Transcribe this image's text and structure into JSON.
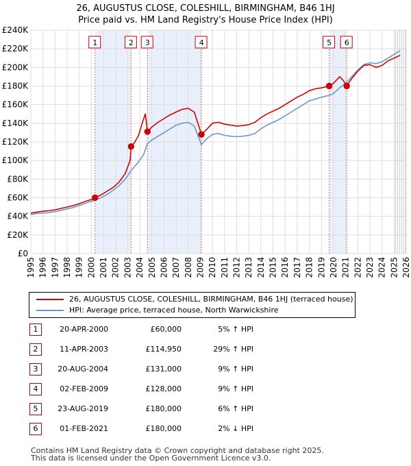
{
  "chart_data": {
    "type": "line",
    "title": "26, AUGUSTUS CLOSE, COLESHILL, BIRMINGHAM, B46 1HJ",
    "subtitle": "Price paid vs. HM Land Registry's House Price Index (HPI)",
    "xlim": [
      1995,
      2026
    ],
    "ylim": [
      0,
      240000
    ],
    "x_ticks": [
      1995,
      1996,
      1997,
      1998,
      1999,
      2000,
      2001,
      2002,
      2003,
      2004,
      2005,
      2006,
      2007,
      2008,
      2009,
      2010,
      2011,
      2012,
      2013,
      2014,
      2015,
      2016,
      2017,
      2018,
      2019,
      2020,
      2021,
      2022,
      2023,
      2024,
      2025,
      2026
    ],
    "y_ticks": [
      {
        "value": 0,
        "label": "£0"
      },
      {
        "value": 20000,
        "label": "£20K"
      },
      {
        "value": 40000,
        "label": "£40K"
      },
      {
        "value": 60000,
        "label": "£60K"
      },
      {
        "value": 80000,
        "label": "£80K"
      },
      {
        "value": 100000,
        "label": "£100K"
      },
      {
        "value": 120000,
        "label": "£120K"
      },
      {
        "value": 140000,
        "label": "£140K"
      },
      {
        "value": 160000,
        "label": "£160K"
      },
      {
        "value": 180000,
        "label": "£180K"
      },
      {
        "value": 200000,
        "label": "£200K"
      },
      {
        "value": 220000,
        "label": "£220K"
      },
      {
        "value": 240000,
        "label": "£240K"
      }
    ],
    "grid": true,
    "shaded_periods": [
      [
        2000.3,
        2003.28
      ],
      [
        2004.63,
        2009.09
      ],
      [
        2019.64,
        2021.09
      ]
    ],
    "forecast_start": 2025.1,
    "series": [
      {
        "name": "26, AUGUSTUS CLOSE, COLESHILL, BIRMINGHAM, B46 1HJ (terraced house)",
        "color": "#cc0000",
        "points": [
          [
            1995.0,
            43500
          ],
          [
            1995.5,
            44500
          ],
          [
            1996.0,
            45500
          ],
          [
            1996.5,
            46000
          ],
          [
            1997.0,
            47000
          ],
          [
            1997.5,
            48500
          ],
          [
            1998.0,
            50000
          ],
          [
            1998.5,
            51500
          ],
          [
            1999.0,
            53500
          ],
          [
            1999.5,
            56000
          ],
          [
            2000.0,
            58000
          ],
          [
            2000.3,
            60000
          ],
          [
            2000.8,
            63000
          ],
          [
            2001.3,
            67000
          ],
          [
            2001.8,
            71000
          ],
          [
            2002.3,
            77000
          ],
          [
            2002.8,
            86000
          ],
          [
            2003.0,
            93000
          ],
          [
            2003.2,
            100000
          ],
          [
            2003.28,
            114950
          ],
          [
            2003.6,
            120000
          ],
          [
            2003.9,
            127000
          ],
          [
            2004.2,
            140000
          ],
          [
            2004.45,
            150000
          ],
          [
            2004.55,
            140000
          ],
          [
            2004.63,
            131000
          ],
          [
            2005.0,
            136000
          ],
          [
            2005.5,
            141000
          ],
          [
            2006.0,
            145000
          ],
          [
            2006.5,
            149000
          ],
          [
            2007.0,
            152000
          ],
          [
            2007.5,
            155000
          ],
          [
            2008.0,
            156000
          ],
          [
            2008.5,
            152000
          ],
          [
            2008.8,
            140000
          ],
          [
            2009.09,
            128000
          ],
          [
            2009.5,
            133000
          ],
          [
            2010.0,
            140000
          ],
          [
            2010.5,
            141000
          ],
          [
            2011.0,
            139000
          ],
          [
            2011.5,
            138000
          ],
          [
            2012.0,
            137000
          ],
          [
            2012.5,
            137500
          ],
          [
            2013.0,
            138500
          ],
          [
            2013.5,
            141000
          ],
          [
            2014.0,
            146000
          ],
          [
            2014.5,
            150000
          ],
          [
            2015.0,
            153000
          ],
          [
            2015.5,
            156000
          ],
          [
            2016.0,
            160000
          ],
          [
            2016.5,
            164000
          ],
          [
            2017.0,
            168000
          ],
          [
            2017.5,
            171000
          ],
          [
            2018.0,
            175000
          ],
          [
            2018.5,
            177000
          ],
          [
            2019.0,
            178000
          ],
          [
            2019.64,
            180000
          ],
          [
            2020.0,
            183000
          ],
          [
            2020.5,
            190000
          ],
          [
            2020.8,
            186000
          ],
          [
            2021.09,
            180000
          ],
          [
            2021.5,
            188000
          ],
          [
            2022.0,
            196000
          ],
          [
            2022.5,
            202000
          ],
          [
            2023.0,
            203000
          ],
          [
            2023.5,
            200000
          ],
          [
            2024.0,
            202000
          ],
          [
            2024.5,
            207000
          ],
          [
            2025.0,
            210000
          ],
          [
            2025.5,
            213000
          ]
        ]
      },
      {
        "name": "HPI: Average price, terraced house, North Warwickshire",
        "color": "#6b96c6",
        "points": [
          [
            1995.0,
            42000
          ],
          [
            1995.5,
            43000
          ],
          [
            1996.0,
            43500
          ],
          [
            1996.5,
            44000
          ],
          [
            1997.0,
            45000
          ],
          [
            1997.5,
            46500
          ],
          [
            1998.0,
            48000
          ],
          [
            1998.5,
            49500
          ],
          [
            1999.0,
            51500
          ],
          [
            1999.5,
            54000
          ],
          [
            2000.0,
            56000
          ],
          [
            2000.3,
            57500
          ],
          [
            2000.8,
            60000
          ],
          [
            2001.3,
            63500
          ],
          [
            2001.8,
            68000
          ],
          [
            2002.3,
            73000
          ],
          [
            2002.8,
            80000
          ],
          [
            2003.28,
            89000
          ],
          [
            2003.8,
            97000
          ],
          [
            2004.3,
            106000
          ],
          [
            2004.63,
            118000
          ],
          [
            2005.0,
            122000
          ],
          [
            2005.5,
            126000
          ],
          [
            2006.0,
            130000
          ],
          [
            2006.5,
            134000
          ],
          [
            2007.0,
            138000
          ],
          [
            2007.5,
            140000
          ],
          [
            2008.0,
            141000
          ],
          [
            2008.5,
            137000
          ],
          [
            2009.09,
            117000
          ],
          [
            2009.5,
            123000
          ],
          [
            2010.0,
            128000
          ],
          [
            2010.5,
            129000
          ],
          [
            2011.0,
            127000
          ],
          [
            2011.5,
            126000
          ],
          [
            2012.0,
            125500
          ],
          [
            2012.5,
            126000
          ],
          [
            2013.0,
            127000
          ],
          [
            2013.5,
            129000
          ],
          [
            2014.0,
            134000
          ],
          [
            2014.5,
            138000
          ],
          [
            2015.0,
            141000
          ],
          [
            2015.5,
            144000
          ],
          [
            2016.0,
            148000
          ],
          [
            2016.5,
            152000
          ],
          [
            2017.0,
            156000
          ],
          [
            2017.5,
            160000
          ],
          [
            2018.0,
            164000
          ],
          [
            2018.5,
            166000
          ],
          [
            2019.0,
            168000
          ],
          [
            2019.64,
            170000
          ],
          [
            2020.0,
            172000
          ],
          [
            2020.5,
            178000
          ],
          [
            2021.09,
            184000
          ],
          [
            2021.5,
            190000
          ],
          [
            2022.0,
            197000
          ],
          [
            2022.5,
            203000
          ],
          [
            2023.0,
            205000
          ],
          [
            2023.5,
            204000
          ],
          [
            2024.0,
            206000
          ],
          [
            2024.5,
            210000
          ],
          [
            2025.0,
            214000
          ],
          [
            2025.5,
            218000
          ]
        ]
      }
    ],
    "sales": [
      {
        "n": "1",
        "year": 2000.3,
        "date": "20-APR-2000",
        "price": 60000,
        "price_label": "£60,000",
        "hpi": "5% ↑ HPI"
      },
      {
        "n": "2",
        "year": 2003.28,
        "date": "11-APR-2003",
        "price": 114950,
        "price_label": "£114,950",
        "hpi": "29% ↑ HPI"
      },
      {
        "n": "3",
        "year": 2004.63,
        "date": "20-AUG-2004",
        "price": 131000,
        "price_label": "£131,000",
        "hpi": "9% ↑ HPI"
      },
      {
        "n": "4",
        "year": 2009.09,
        "date": "02-FEB-2009",
        "price": 128000,
        "price_label": "£128,000",
        "hpi": "9% ↑ HPI"
      },
      {
        "n": "5",
        "year": 2019.64,
        "date": "23-AUG-2019",
        "price": 180000,
        "price_label": "£180,000",
        "hpi": "6% ↑ HPI"
      },
      {
        "n": "6",
        "year": 2021.09,
        "date": "01-FEB-2021",
        "price": 180000,
        "price_label": "£180,000",
        "hpi": "2% ↓ HPI"
      }
    ]
  },
  "legend": {
    "items": [
      {
        "label": "26, AUGUSTUS CLOSE, COLESHILL, BIRMINGHAM, B46 1HJ (terraced house)",
        "color": "#cc0000"
      },
      {
        "label": "HPI: Average price, terraced house, North Warwickshire",
        "color": "#6b96c6"
      }
    ]
  },
  "footer": {
    "line1": "Contains HM Land Registry data © Crown copyright and database right 2025.",
    "line2": "This data is licensed under the Open Government Licence v3.0."
  }
}
